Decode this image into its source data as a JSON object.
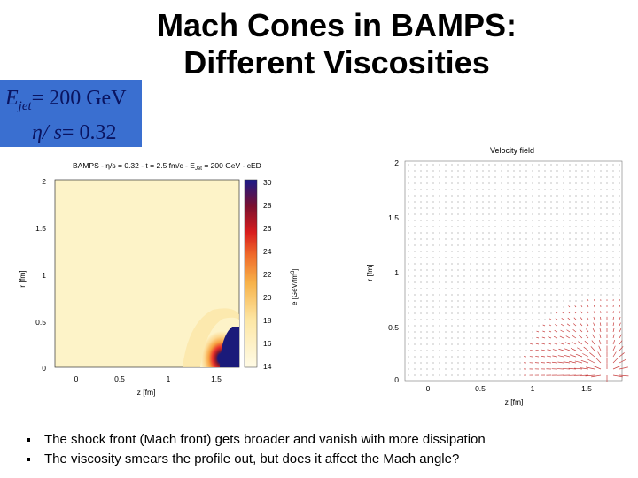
{
  "slide": {
    "title_line1": "Mach Cones in BAMPS:",
    "title_line2": "Different Viscosities"
  },
  "param_box": {
    "e_symbol": "E",
    "e_sub": "jet",
    "e_value": "= 200 GeV",
    "eta_s_symbol": "η/ s",
    "eta_s_value": "= 0.32"
  },
  "left_plot": {
    "title": "BAMPS - η/s = 0.32 - t = 2.5 fm/c - E",
    "title_sub": "Jet",
    "title_rest": " = 200 GeV - cED",
    "xlabel": "z [fm]",
    "ylabel": "r [fm]",
    "colorbar_label": "e [GeV/fm",
    "colorbar_label_sup": "3",
    "colorbar_label_end": "]",
    "x_ticks": [
      "0",
      "0.5",
      "1",
      "1.5"
    ],
    "y_ticks": [
      "0",
      "0.5",
      "1",
      "1.5",
      "2"
    ],
    "colorbar_ticks": [
      "30",
      "28",
      "26",
      "24",
      "22",
      "20",
      "18",
      "16",
      "14"
    ]
  },
  "right_plot": {
    "title": "Velocity field",
    "xlabel": "z [fm]",
    "ylabel": "r [fm]",
    "x_ticks": [
      "0",
      "0.5",
      "1",
      "1.5"
    ],
    "y_ticks": [
      "0",
      "0.5",
      "1",
      "1.5",
      "2"
    ]
  },
  "bullets": [
    "The shock front (Mach front) gets broader and vanish with more dissipation",
    "The viscosity smears the profile out, but does it affect the Mach angle?"
  ],
  "colors": {
    "param_box_bg": "#3a6fd0",
    "param_box_text": "#0a1460",
    "heatmap_background": "#fdf3c8",
    "heatmap_peak": "#1a1a7a",
    "vector_arrows": "#c84040"
  }
}
